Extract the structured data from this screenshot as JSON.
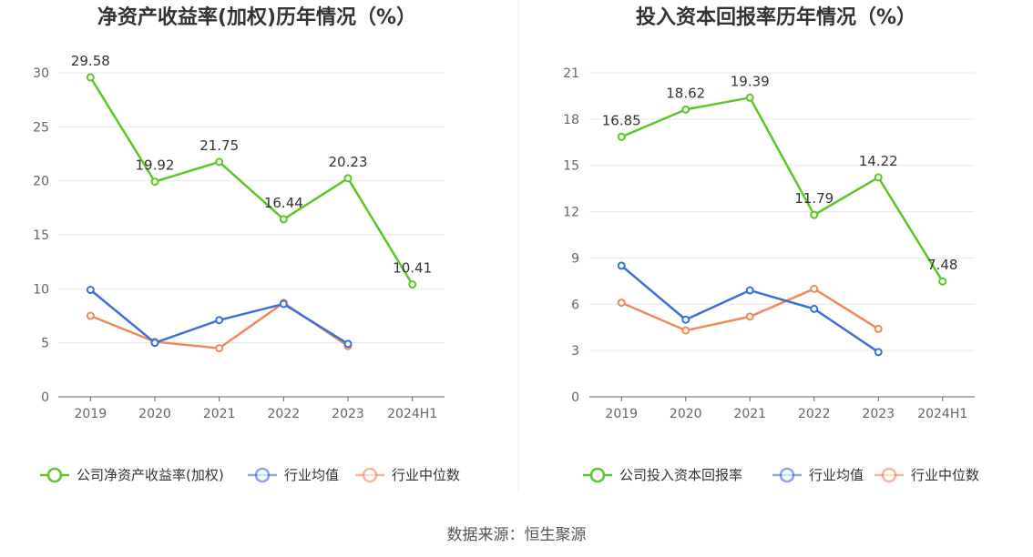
{
  "source": "数据来源：恒生聚源",
  "chart_data": [
    {
      "type": "line",
      "title": "净资产收益率(加权)历年情况（%）",
      "categories": [
        "2019",
        "2020",
        "2021",
        "2022",
        "2023",
        "2024H1"
      ],
      "ylim": [
        0,
        30
      ],
      "yticks": [
        0,
        5,
        10,
        15,
        20,
        25,
        30
      ],
      "grid": true,
      "legend_position": "bottom",
      "series": [
        {
          "name": "公司净资产收益率(加权)",
          "color": "#5ac727",
          "values": [
            29.58,
            19.92,
            21.75,
            16.44,
            20.23,
            10.41
          ],
          "labels": [
            "29.58",
            "19.92",
            "21.75",
            "16.44",
            "20.23",
            "10.41"
          ]
        },
        {
          "name": "行业均值",
          "color": "#3b70d8",
          "values": [
            9.9,
            5.0,
            7.1,
            8.6,
            4.9,
            null
          ]
        },
        {
          "name": "行业中位数",
          "color": "#f08a5d",
          "values": [
            7.5,
            5.1,
            4.5,
            8.7,
            4.7,
            null
          ]
        }
      ]
    },
    {
      "type": "line",
      "title": "投入资本回报率历年情况（%）",
      "categories": [
        "2019",
        "2020",
        "2021",
        "2022",
        "2023",
        "2024H1"
      ],
      "ylim": [
        0,
        21
      ],
      "yticks": [
        0,
        3,
        6,
        9,
        12,
        15,
        18,
        21
      ],
      "grid": true,
      "legend_position": "bottom",
      "series": [
        {
          "name": "公司投入资本回报率",
          "color": "#5ac727",
          "values": [
            16.85,
            18.62,
            19.39,
            11.79,
            14.22,
            7.48
          ],
          "labels": [
            "16.85",
            "18.62",
            "19.39",
            "11.79",
            "14.22",
            "7.48"
          ]
        },
        {
          "name": "行业均值",
          "color": "#3b70d8",
          "values": [
            8.5,
            5.0,
            6.9,
            5.7,
            2.9,
            null
          ]
        },
        {
          "name": "行业中位数",
          "color": "#f08a5d",
          "values": [
            6.1,
            4.3,
            5.2,
            7.0,
            4.4,
            null
          ]
        }
      ]
    }
  ]
}
